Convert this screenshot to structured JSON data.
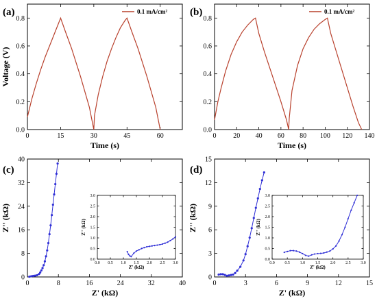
{
  "colors": {
    "gcd_line": "#b8402c",
    "eis_line": "#2f2fd6",
    "axis": "#000000"
  },
  "chart_data": [
    {
      "id": "a",
      "type": "line",
      "panel_label": "(a)",
      "xlabel": "Time (s)",
      "ylabel": "Voltage (V)",
      "xlim": [
        0,
        70
      ],
      "ylim": [
        0,
        0.9
      ],
      "xticks": [
        0,
        15,
        30,
        45,
        60
      ],
      "yticks": [
        0.0,
        0.2,
        0.4,
        0.6,
        0.8
      ],
      "legend": "0.1 mA/cm²",
      "legend_position": "top-right",
      "series": [
        {
          "x": [
            0,
            2,
            4,
            6,
            8,
            10,
            12,
            14,
            15,
            17,
            20,
            24,
            28,
            30,
            30.3,
            32,
            34,
            36,
            38,
            40,
            42,
            44,
            45,
            47,
            50,
            54,
            58,
            60
          ],
          "y": [
            0.09,
            0.22,
            0.33,
            0.43,
            0.52,
            0.6,
            0.68,
            0.76,
            0.8,
            0.71,
            0.58,
            0.38,
            0.16,
            0.0,
            0.1,
            0.25,
            0.38,
            0.49,
            0.58,
            0.66,
            0.73,
            0.78,
            0.8,
            0.71,
            0.58,
            0.38,
            0.16,
            0.0
          ]
        }
      ]
    },
    {
      "id": "b",
      "type": "line",
      "panel_label": "(b)",
      "xlabel": "Time (s)",
      "ylabel": "",
      "xlim": [
        0,
        140
      ],
      "ylim": [
        0,
        0.9
      ],
      "xticks": [
        0,
        20,
        40,
        60,
        80,
        100,
        120,
        140
      ],
      "yticks": [
        0.0,
        0.2,
        0.4,
        0.6,
        0.8
      ],
      "legend": "0.1 mA/cm²",
      "legend_position": "top-right",
      "series": [
        {
          "x": [
            0,
            3,
            6,
            10,
            15,
            20,
            25,
            30,
            35,
            37,
            40,
            45,
            50,
            55,
            60,
            65,
            67,
            67.5,
            70,
            75,
            80,
            85,
            90,
            95,
            100,
            102,
            105,
            110,
            115,
            120,
            125,
            130,
            133
          ],
          "y": [
            0.07,
            0.2,
            0.3,
            0.42,
            0.54,
            0.63,
            0.7,
            0.75,
            0.79,
            0.8,
            0.69,
            0.56,
            0.44,
            0.32,
            0.2,
            0.07,
            0.0,
            0.08,
            0.28,
            0.46,
            0.58,
            0.66,
            0.72,
            0.76,
            0.79,
            0.8,
            0.69,
            0.56,
            0.43,
            0.3,
            0.17,
            0.05,
            0.0
          ]
        }
      ]
    },
    {
      "id": "c",
      "type": "scatter",
      "panel_label": "(c)",
      "xlabel": "Z' (kΩ)",
      "ylabel": "Z'' (kΩ)",
      "xlim": [
        0,
        40
      ],
      "ylim": [
        0,
        40
      ],
      "xticks": [
        0,
        8,
        16,
        24,
        32,
        40
      ],
      "yticks": [
        0,
        8,
        16,
        24,
        32,
        40
      ],
      "series": [
        {
          "x": [
            0.5,
            1,
            1.5,
            2,
            2.5,
            3,
            3.3,
            3.6,
            3.9,
            4.2,
            4.5,
            4.8,
            5.1,
            5.4,
            5.7,
            6.0,
            6.3,
            6.6,
            6.9,
            7.2,
            7.5,
            7.8
          ],
          "y": [
            0.1,
            0.25,
            0.35,
            0.45,
            0.6,
            1.0,
            1.5,
            2.2,
            3.0,
            4.0,
            5.3,
            7.0,
            9.0,
            11.5,
            14.5,
            17.5,
            21,
            24.5,
            28,
            31.5,
            35,
            38.5
          ]
        }
      ],
      "inset": {
        "xlabel": "Z' (kΩ)",
        "ylabel": "Z'' (kΩ)",
        "xlim": [
          0,
          3
        ],
        "ylim": [
          0,
          3
        ],
        "xticks": [
          0.0,
          0.5,
          1.0,
          1.5,
          2.0,
          2.5,
          3.0
        ],
        "yticks": [
          0.0,
          0.5,
          1.0,
          1.5,
          2.0,
          2.5,
          3.0
        ],
        "series": [
          {
            "x": [
              1.15,
              1.2,
              1.25,
              1.3,
              1.4,
              1.5,
              1.6,
              1.7,
              1.8,
              1.9,
              2.0,
              2.1,
              2.2,
              2.3,
              2.4,
              2.5,
              2.6,
              2.7,
              2.8,
              2.9,
              3.0
            ],
            "y": [
              0.35,
              0.22,
              0.15,
              0.12,
              0.28,
              0.38,
              0.44,
              0.5,
              0.54,
              0.58,
              0.6,
              0.62,
              0.64,
              0.66,
              0.68,
              0.71,
              0.75,
              0.8,
              0.87,
              0.95,
              1.05
            ]
          }
        ]
      }
    },
    {
      "id": "d",
      "type": "scatter",
      "panel_label": "(d)",
      "xlabel": "Z' (kΩ)",
      "ylabel": "Z'' (kΩ)",
      "xlim": [
        0,
        15
      ],
      "ylim": [
        0,
        15
      ],
      "xticks": [
        0,
        3,
        6,
        9,
        12,
        15
      ],
      "yticks": [
        0,
        3,
        6,
        9,
        12,
        15
      ],
      "series": [
        {
          "x": [
            0.4,
            0.6,
            0.8,
            1.0,
            1.2,
            1.4,
            1.6,
            1.8,
            2.0,
            2.2,
            2.5,
            2.8,
            3.0,
            3.2,
            3.4,
            3.6,
            3.8,
            4.0,
            4.2,
            4.4,
            4.6,
            4.8
          ],
          "y": [
            0.3,
            0.35,
            0.35,
            0.25,
            0.15,
            0.2,
            0.25,
            0.3,
            0.5,
            0.8,
            1.3,
            2.1,
            2.9,
            3.9,
            5.0,
            6.2,
            7.5,
            8.8,
            10.0,
            11.2,
            12.3,
            13.3
          ]
        }
      ],
      "inset": {
        "xlabel": "Z' (kΩ)",
        "ylabel": "Z'' (kΩ)",
        "xlim": [
          0,
          3
        ],
        "ylim": [
          0,
          3
        ],
        "xticks": [
          0.0,
          0.5,
          1.0,
          1.5,
          2.0,
          2.5,
          3.0
        ],
        "yticks": [
          0.0,
          0.5,
          1.0,
          1.5,
          2.0,
          2.5,
          3.0
        ],
        "series": [
          {
            "x": [
              0.4,
              0.5,
              0.6,
              0.7,
              0.8,
              0.9,
              1.0,
              1.1,
              1.2,
              1.3,
              1.4,
              1.5,
              1.6,
              1.7,
              1.8,
              1.9,
              2.0,
              2.1,
              2.2,
              2.3,
              2.4,
              2.5,
              2.6,
              2.7,
              2.8
            ],
            "y": [
              0.32,
              0.36,
              0.4,
              0.4,
              0.38,
              0.33,
              0.26,
              0.18,
              0.14,
              0.2,
              0.24,
              0.26,
              0.27,
              0.29,
              0.33,
              0.38,
              0.48,
              0.62,
              0.85,
              1.15,
              1.5,
              1.9,
              2.3,
              2.65,
              3.0
            ]
          }
        ]
      }
    }
  ]
}
